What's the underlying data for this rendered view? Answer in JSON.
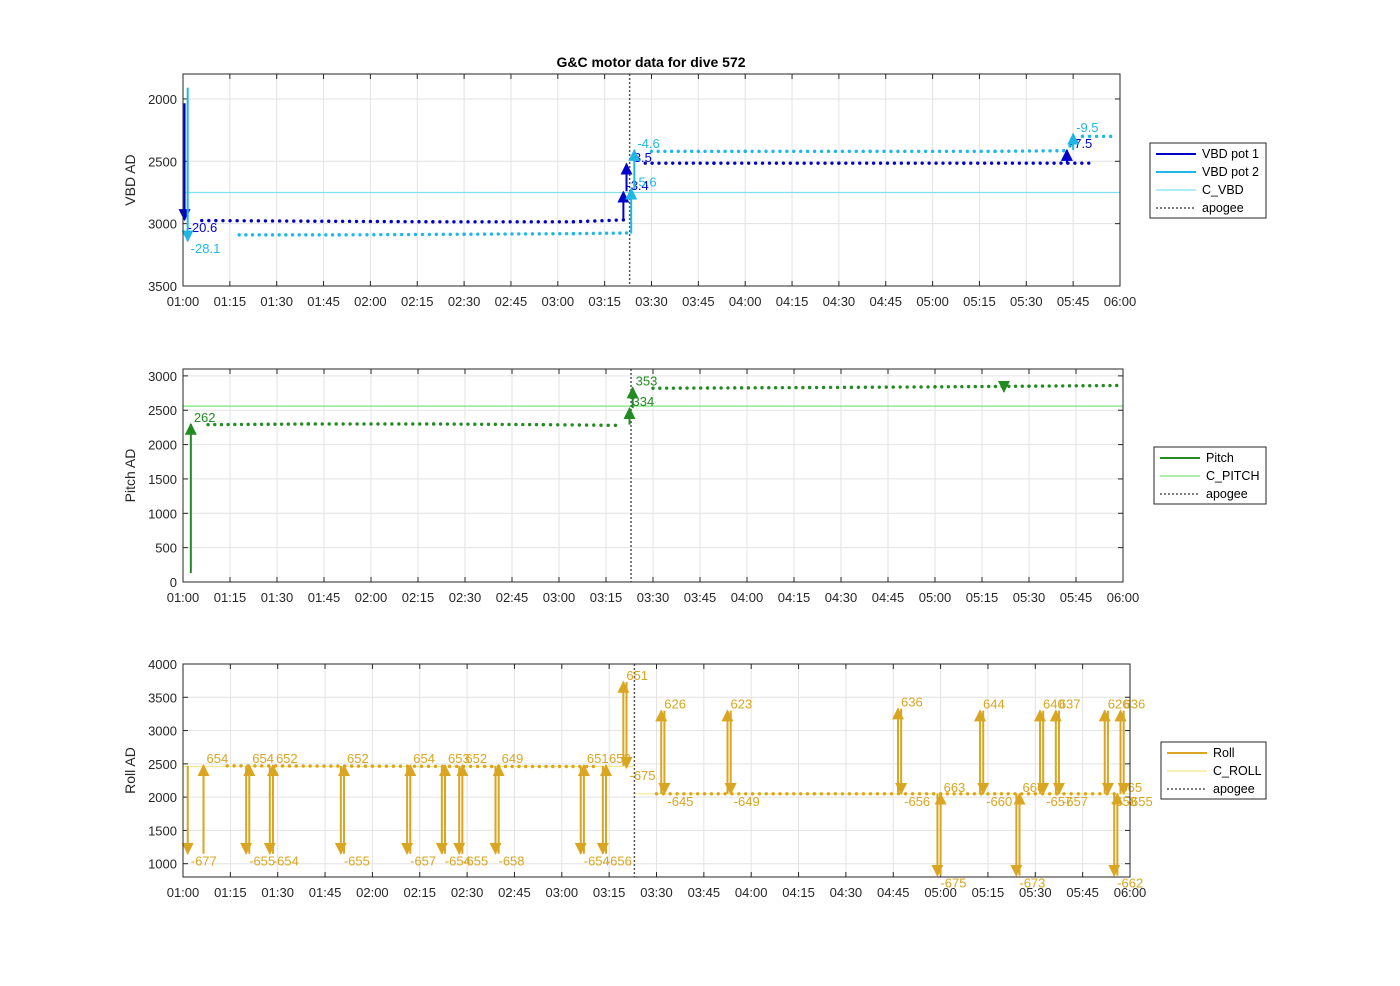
{
  "figure_title": "G&C motor data for dive 572",
  "colors": {
    "vbd1": "#0000CD",
    "vbd2": "#1FB8E6",
    "c_vbd": "#7FE0EE",
    "pitch": "#228B22",
    "c_pitch": "#7CE37C",
    "roll": "#DAA520",
    "c_roll": "#F5E88A",
    "apogee": "#555555"
  },
  "x_ticks": [
    "01:00",
    "01:15",
    "01:30",
    "01:45",
    "02:00",
    "02:15",
    "02:30",
    "02:45",
    "03:00",
    "03:15",
    "03:30",
    "03:45",
    "04:00",
    "04:15",
    "04:30",
    "04:45",
    "05:00",
    "05:15",
    "05:30",
    "05:45",
    "06:00"
  ],
  "chart_data": [
    {
      "type": "scatter",
      "ylabel": "VBD AD",
      "xlim_min": [
        0,
        300
      ],
      "ylim": [
        1800,
        3500
      ],
      "y_reversed": true,
      "yticks": [
        2000,
        2500,
        3000,
        3500
      ],
      "grid": true,
      "legend_position": "right",
      "legend": [
        "VBD pot 1",
        "VBD pot 2",
        "C_VBD",
        "apogee"
      ],
      "apogee_min": 143,
      "reference_lines": [
        {
          "name": "C_VBD",
          "y": 2750
        }
      ],
      "series": [
        {
          "name": "VBD pot 1",
          "dots": [
            [
              6,
              2975
            ],
            [
              40,
              2980
            ],
            [
              80,
              2985
            ],
            [
              125,
              2985
            ],
            [
              141,
              2970
            ],
            [
              148,
              2515
            ],
            [
              170,
              2515
            ],
            [
              210,
              2515
            ],
            [
              250,
              2515
            ],
            [
              290,
              2515
            ]
          ]
        },
        {
          "name": "VBD pot 2",
          "dots": [
            [
              18,
              3090
            ],
            [
              50,
              3090
            ],
            [
              90,
              3085
            ],
            [
              125,
              3080
            ],
            [
              142,
              3075
            ],
            [
              150,
              2420
            ],
            [
              180,
              2420
            ],
            [
              220,
              2420
            ],
            [
              260,
              2420
            ],
            [
              282,
              2415
            ],
            [
              288,
              2300
            ],
            [
              297,
              2300
            ]
          ]
        }
      ],
      "moves": [
        {
          "series": "VBD pot 1",
          "x": 0.5,
          "from": 2035,
          "to": 2970,
          "label": "-20.6"
        },
        {
          "series": "VBD pot 2",
          "x": 1.5,
          "from": 1910,
          "to": 3140,
          "label": "-28.1"
        },
        {
          "series": "VBD pot 1",
          "x": 141,
          "from": 2980,
          "to": 2745,
          "label": "-3.4"
        },
        {
          "series": "VBD pot 1",
          "x": 142,
          "from": 2740,
          "to": 2520,
          "label": "-3.5"
        },
        {
          "series": "VBD pot 2",
          "x": 143.5,
          "from": 3080,
          "to": 2720,
          "label": "-5.6"
        },
        {
          "series": "VBD pot 2",
          "x": 144.5,
          "from": 2720,
          "to": 2410,
          "label": "-4.6"
        },
        {
          "series": "VBD pot 1",
          "x": 283,
          "from": 2520,
          "to": 2410,
          "label": "-7.5"
        },
        {
          "series": "VBD pot 2",
          "x": 285,
          "from": 2410,
          "to": 2280,
          "label": "-9.5"
        }
      ]
    },
    {
      "type": "scatter",
      "ylabel": "Pitch AD",
      "xlim_min": [
        0,
        300
      ],
      "ylim": [
        0,
        3100
      ],
      "y_reversed": false,
      "yticks": [
        0,
        500,
        1000,
        1500,
        2000,
        2500,
        3000
      ],
      "grid": true,
      "legend_position": "right",
      "legend": [
        "Pitch",
        "C_PITCH",
        "apogee"
      ],
      "apogee_min": 143,
      "reference_lines": [
        {
          "name": "C_PITCH",
          "y": 2560
        }
      ],
      "series": [
        {
          "name": "Pitch",
          "dots": [
            [
              8,
              2290
            ],
            [
              40,
              2300
            ],
            [
              80,
              2300
            ],
            [
              115,
              2290
            ],
            [
              138,
              2280
            ],
            [
              150,
              2820
            ],
            [
              200,
              2830
            ],
            [
              240,
              2840
            ],
            [
              270,
              2850
            ],
            [
              298,
              2860
            ]
          ]
        }
      ],
      "moves": [
        {
          "series": "Pitch",
          "x": 2.5,
          "from": 130,
          "to": 2300,
          "label": "262"
        },
        {
          "series": "Pitch",
          "x": 142.5,
          "from": 2290,
          "to": 2530,
          "label": "334"
        },
        {
          "series": "Pitch",
          "x": 143.5,
          "from": 2530,
          "to": 2830,
          "label": "353"
        },
        {
          "series": "Pitch",
          "x": 262,
          "from": 2850,
          "to": 2770,
          "label": ""
        }
      ]
    },
    {
      "type": "scatter",
      "ylabel": "Roll AD",
      "xlim_min": [
        0,
        300
      ],
      "ylim": [
        800,
        4000
      ],
      "y_reversed": false,
      "yticks": [
        1000,
        1500,
        2000,
        2500,
        3000,
        3500,
        4000
      ],
      "grid": true,
      "legend_position": "right",
      "legend": [
        "Roll",
        "C_ROLL",
        "apogee"
      ],
      "apogee_min": 143,
      "reference_lines": [
        {
          "name": "C_ROLL",
          "y_before": 2460,
          "y_after": 2050
        }
      ],
      "series": [
        {
          "name": "Roll",
          "dots": [
            [
              14,
              2470
            ],
            [
              60,
              2465
            ],
            [
              100,
              2460
            ],
            [
              130,
              2460
            ],
            [
              150,
              2050
            ],
            [
              200,
              2050
            ],
            [
              240,
              2050
            ],
            [
              270,
              2050
            ],
            [
              295,
              2050
            ]
          ]
        }
      ],
      "moves": [
        {
          "series": "Roll",
          "x": 1.5,
          "from": 2470,
          "to": 1150,
          "label": "-677"
        },
        {
          "series": "Roll",
          "x": 6.5,
          "from": 1150,
          "to": 2480,
          "label": "654"
        },
        {
          "series": "Roll",
          "x": 20,
          "from": 2470,
          "to": 1150,
          "label": "-655"
        },
        {
          "series": "Roll",
          "x": 21,
          "from": 1150,
          "to": 2480,
          "label": "654"
        },
        {
          "series": "Roll",
          "x": 27.5,
          "from": 2470,
          "to": 1150,
          "label": "-654"
        },
        {
          "series": "Roll",
          "x": 28.5,
          "from": 1150,
          "to": 2480,
          "label": "652"
        },
        {
          "series": "Roll",
          "x": 50,
          "from": 2470,
          "to": 1150,
          "label": "-655"
        },
        {
          "series": "Roll",
          "x": 51,
          "from": 1150,
          "to": 2480,
          "label": "652"
        },
        {
          "series": "Roll",
          "x": 71,
          "from": 2470,
          "to": 1150,
          "label": "-657"
        },
        {
          "series": "Roll",
          "x": 72,
          "from": 1150,
          "to": 2480,
          "label": "654"
        },
        {
          "series": "Roll",
          "x": 82,
          "from": 2470,
          "to": 1150,
          "label": "-654"
        },
        {
          "series": "Roll",
          "x": 83,
          "from": 1150,
          "to": 2480,
          "label": "653"
        },
        {
          "series": "Roll",
          "x": 87.5,
          "from": 2470,
          "to": 1150,
          "label": "-655"
        },
        {
          "series": "Roll",
          "x": 88.5,
          "from": 1150,
          "to": 2480,
          "label": "652"
        },
        {
          "series": "Roll",
          "x": 99,
          "from": 2470,
          "to": 1150,
          "label": "-658"
        },
        {
          "series": "Roll",
          "x": 100,
          "from": 1150,
          "to": 2480,
          "label": "649"
        },
        {
          "series": "Roll",
          "x": 126,
          "from": 2470,
          "to": 1150,
          "label": "-654"
        },
        {
          "series": "Roll",
          "x": 127,
          "from": 1150,
          "to": 2480,
          "label": "651"
        },
        {
          "series": "Roll",
          "x": 133,
          "from": 2470,
          "to": 1150,
          "label": "-656"
        },
        {
          "series": "Roll",
          "x": 134,
          "from": 1150,
          "to": 2480,
          "label": "652"
        },
        {
          "series": "Roll",
          "x": 139.5,
          "from": 2470,
          "to": 3730,
          "label": "651"
        },
        {
          "series": "Roll",
          "x": 140.5,
          "from": 3730,
          "to": 2440,
          "label": "-675"
        },
        {
          "series": "Roll",
          "x": 151.5,
          "from": 2050,
          "to": 3300,
          "label": "626"
        },
        {
          "series": "Roll",
          "x": 152.5,
          "from": 3300,
          "to": 2050,
          "label": "-645"
        },
        {
          "series": "Roll",
          "x": 172.5,
          "from": 2050,
          "to": 3300,
          "label": "623"
        },
        {
          "series": "Roll",
          "x": 173.5,
          "from": 3300,
          "to": 2050,
          "label": "-649"
        },
        {
          "series": "Roll",
          "x": 226.5,
          "from": 2050,
          "to": 3330,
          "label": "636"
        },
        {
          "series": "Roll",
          "x": 227.5,
          "from": 3330,
          "to": 2050,
          "label": "-656"
        },
        {
          "series": "Roll",
          "x": 239,
          "from": 2050,
          "to": 820,
          "label": "-675"
        },
        {
          "series": "Roll",
          "x": 240,
          "from": 820,
          "to": 2050,
          "label": "663"
        },
        {
          "series": "Roll",
          "x": 252.5,
          "from": 2050,
          "to": 3300,
          "label": "644"
        },
        {
          "series": "Roll",
          "x": 253.5,
          "from": 3300,
          "to": 2050,
          "label": "-660"
        },
        {
          "series": "Roll",
          "x": 264,
          "from": 2050,
          "to": 820,
          "label": "-673"
        },
        {
          "series": "Roll",
          "x": 265,
          "from": 820,
          "to": 2050,
          "label": "666"
        },
        {
          "series": "Roll",
          "x": 271.5,
          "from": 2050,
          "to": 3300,
          "label": "640"
        },
        {
          "series": "Roll",
          "x": 272.5,
          "from": 3300,
          "to": 2050,
          "label": "-657"
        },
        {
          "series": "Roll",
          "x": 276.5,
          "from": 2050,
          "to": 3300,
          "label": "637"
        },
        {
          "series": "Roll",
          "x": 277.5,
          "from": 3300,
          "to": 2050,
          "label": "-657"
        },
        {
          "series": "Roll",
          "x": 292,
          "from": 2050,
          "to": 3300,
          "label": "626"
        },
        {
          "series": "Roll",
          "x": 293,
          "from": 3300,
          "to": 2050,
          "label": "-658"
        },
        {
          "series": "Roll",
          "x": 295,
          "from": 2050,
          "to": 820,
          "label": "-662"
        },
        {
          "series": "Roll",
          "x": 296,
          "from": 820,
          "to": 2050,
          "label": "665"
        },
        {
          "series": "Roll",
          "x": 297,
          "from": 2050,
          "to": 3300,
          "label": "636"
        },
        {
          "series": "Roll",
          "x": 298,
          "from": 3300,
          "to": 2050,
          "label": "-655"
        }
      ]
    }
  ]
}
